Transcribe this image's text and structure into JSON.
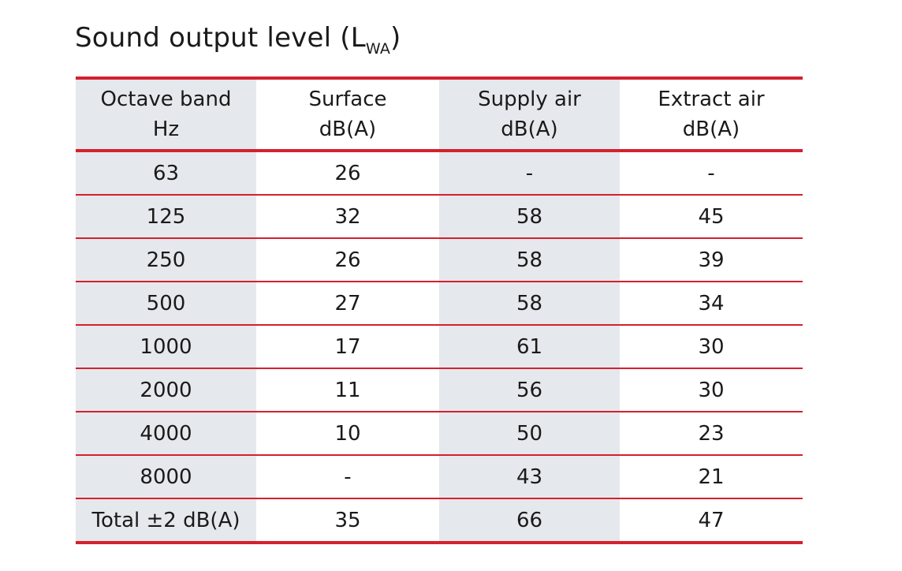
{
  "title": {
    "main": "Sound output level (L",
    "subscript": "WA",
    "close": ")"
  },
  "table": {
    "headers": [
      {
        "line1": "Octave band",
        "line2": "Hz"
      },
      {
        "line1": "Surface",
        "line2": "dB(A)"
      },
      {
        "line1": "Supply air",
        "line2": "dB(A)"
      },
      {
        "line1": "Extract air",
        "line2": "dB(A)"
      }
    ],
    "rows": [
      {
        "band": "63",
        "surface": "26",
        "supply": "-",
        "extract": "-"
      },
      {
        "band": "125",
        "surface": "32",
        "supply": "58",
        "extract": "45"
      },
      {
        "band": "250",
        "surface": "26",
        "supply": "58",
        "extract": "39"
      },
      {
        "band": "500",
        "surface": "27",
        "supply": "58",
        "extract": "34"
      },
      {
        "band": "1000",
        "surface": "17",
        "supply": "61",
        "extract": "30"
      },
      {
        "band": "2000",
        "surface": "11",
        "supply": "56",
        "extract": "30"
      },
      {
        "band": "4000",
        "surface": "10",
        "supply": "50",
        "extract": "23"
      },
      {
        "band": "8000",
        "surface": "-",
        "supply": "43",
        "extract": "21"
      },
      {
        "band": "Total ±2 dB(A)",
        "surface": "35",
        "supply": "66",
        "extract": "47"
      }
    ]
  },
  "colors": {
    "accent_rule": "#d5202e",
    "shaded_column": "#e5e8ec",
    "text": "#1a1a1a"
  }
}
